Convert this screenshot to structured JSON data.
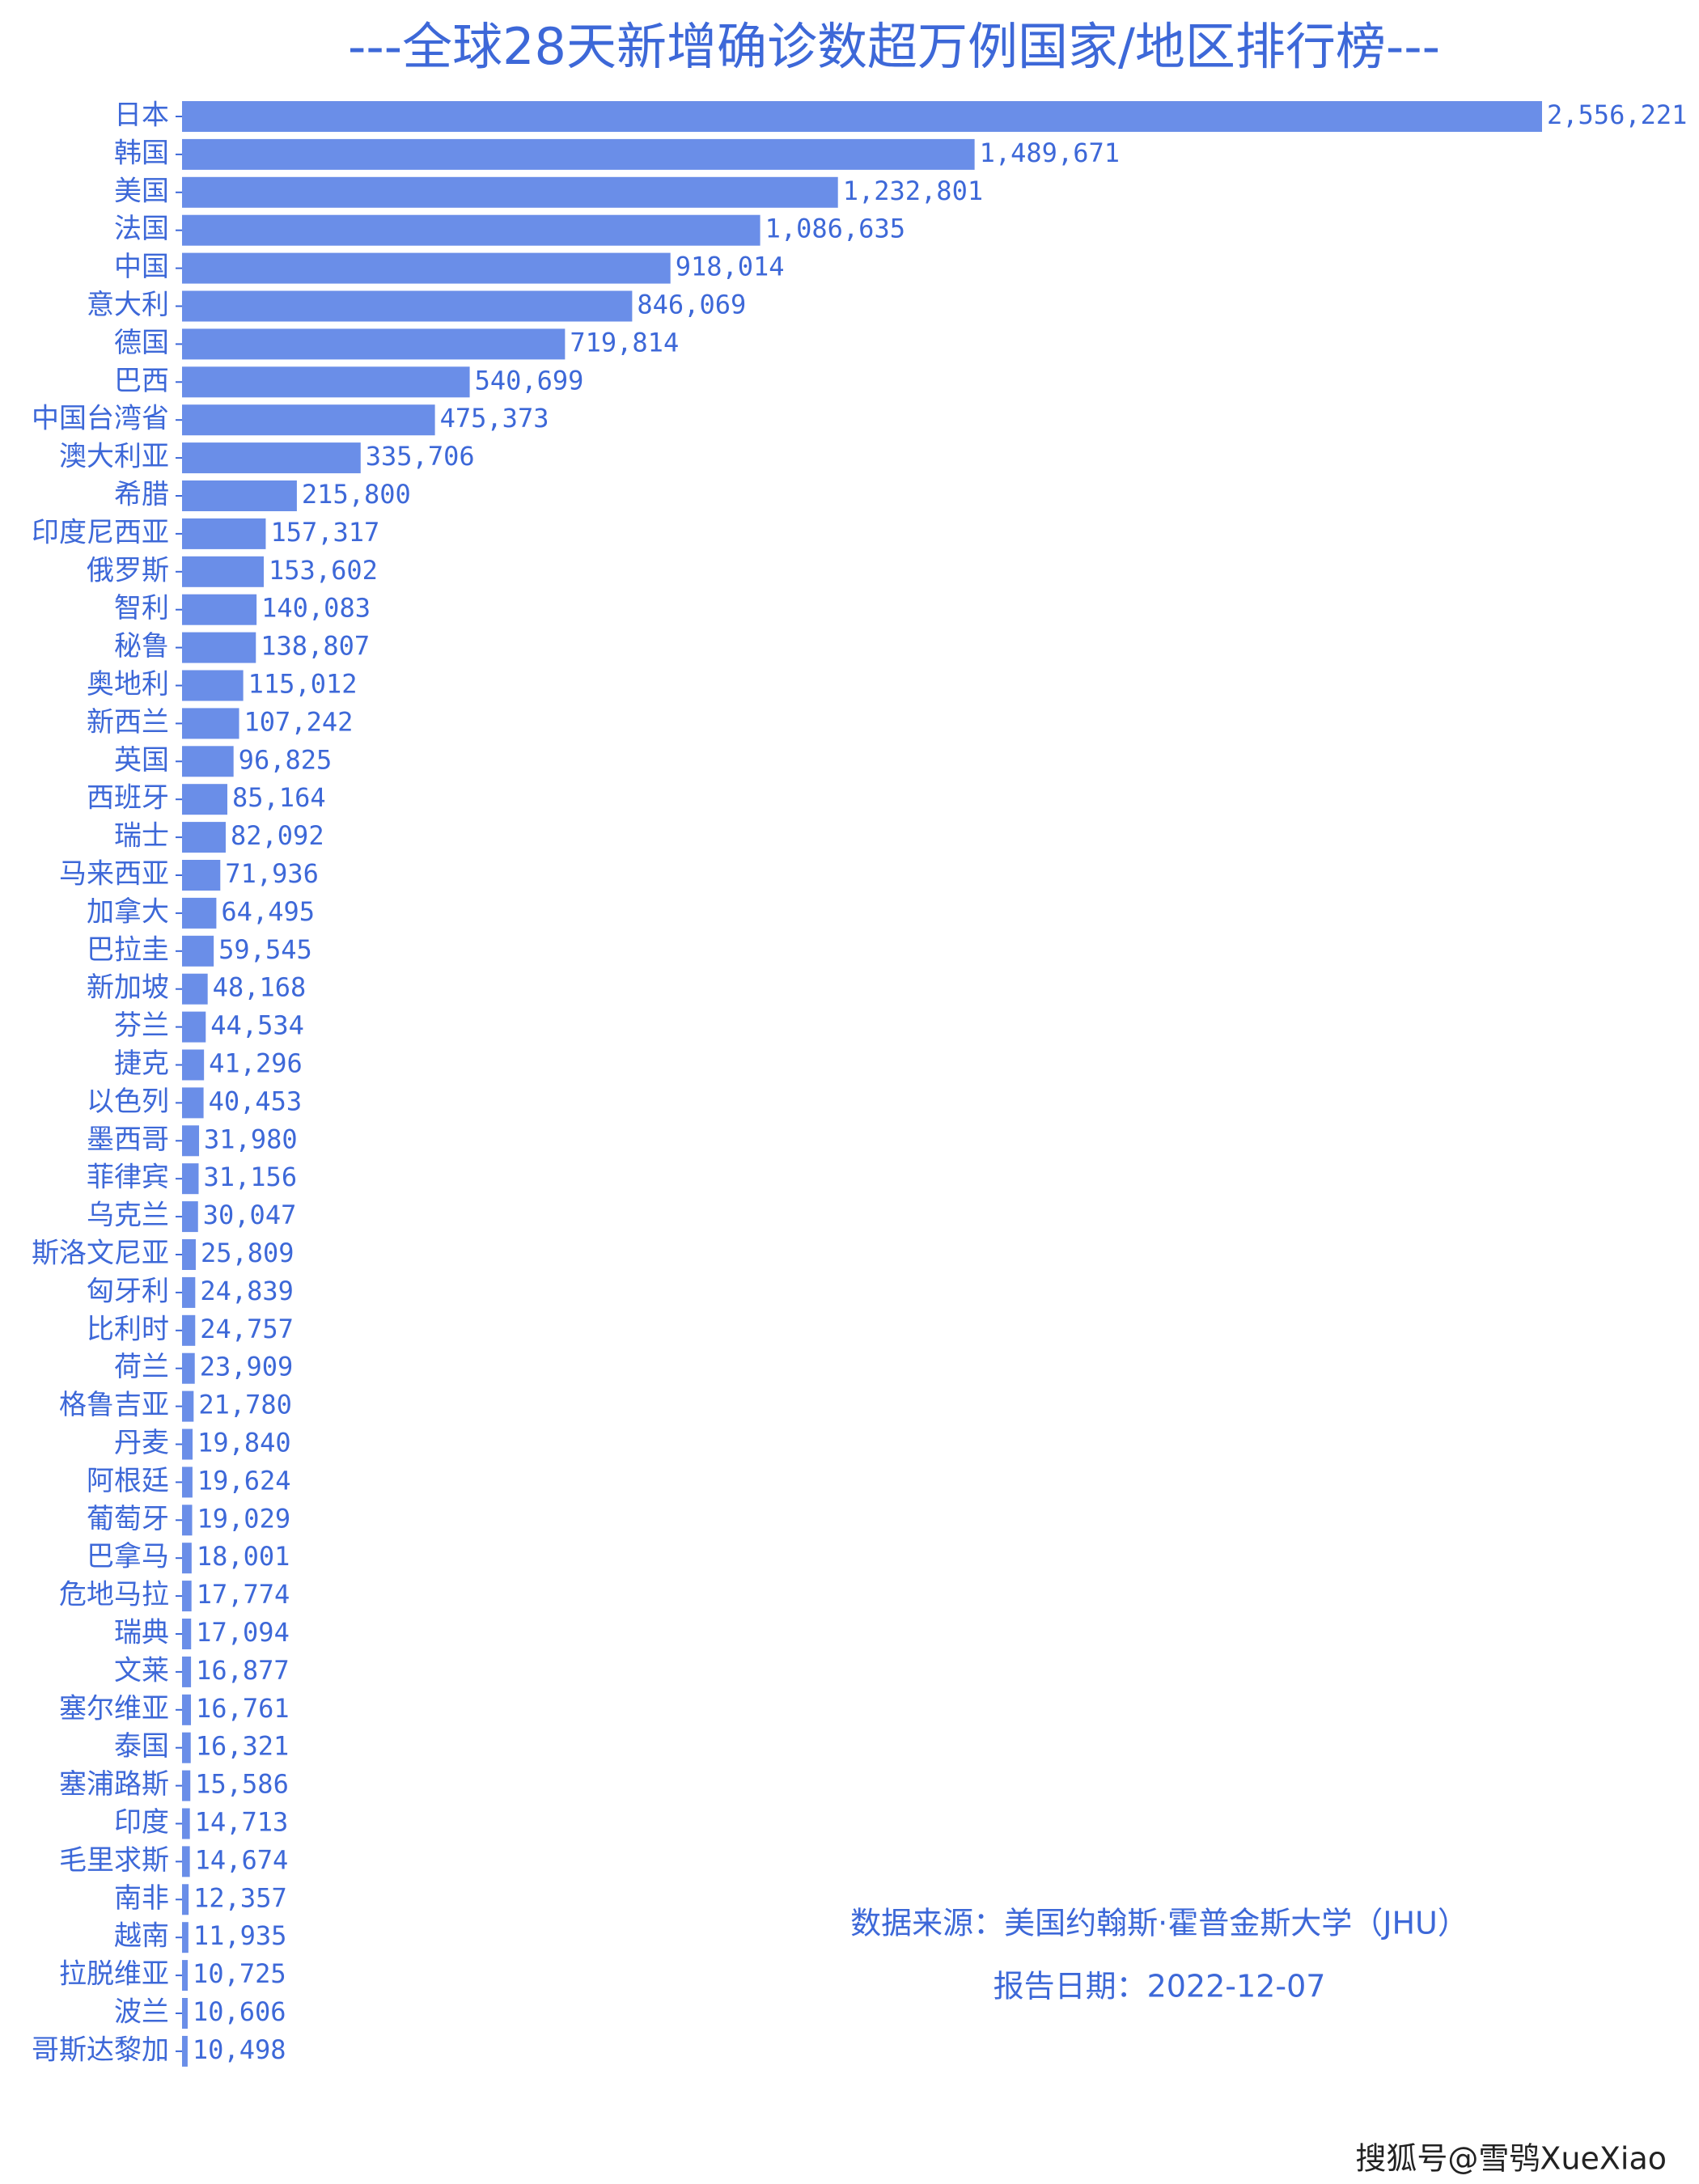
{
  "chart_data": {
    "type": "barh",
    "title": "---全球28天新增确诊数超万例国家/地区排行榜---",
    "color": "#6a8ee8",
    "categories": [
      "日本",
      "韩国",
      "美国",
      "法国",
      "中国",
      "意大利",
      "德国",
      "巴西",
      "中国台湾省",
      "澳大利亚",
      "希腊",
      "印度尼西亚",
      "俄罗斯",
      "智利",
      "秘鲁",
      "奥地利",
      "新西兰",
      "英国",
      "西班牙",
      "瑞士",
      "马来西亚",
      "加拿大",
      "巴拉圭",
      "新加坡",
      "芬兰",
      "捷克",
      "以色列",
      "墨西哥",
      "菲律宾",
      "乌克兰",
      "斯洛文尼亚",
      "匈牙利",
      "比利时",
      "荷兰",
      "格鲁吉亚",
      "丹麦",
      "阿根廷",
      "葡萄牙",
      "巴拿马",
      "危地马拉",
      "瑞典",
      "文莱",
      "塞尔维亚",
      "泰国",
      "塞浦路斯",
      "印度",
      "毛里求斯",
      "南非",
      "越南",
      "拉脱维亚",
      "波兰",
      "哥斯达黎加"
    ],
    "values": [
      2556221,
      1489671,
      1232801,
      1086635,
      918014,
      846069,
      719814,
      540699,
      475373,
      335706,
      215800,
      157317,
      153602,
      140083,
      138807,
      115012,
      107242,
      96825,
      85164,
      82092,
      71936,
      64495,
      59545,
      48168,
      44534,
      41296,
      40453,
      31980,
      31156,
      30047,
      25809,
      24839,
      24757,
      23909,
      21780,
      19840,
      19624,
      19029,
      18001,
      17774,
      17094,
      16877,
      16761,
      16321,
      15586,
      14713,
      14674,
      12357,
      11935,
      10725,
      10606,
      10498
    ],
    "value_labels": [
      "2,556,221",
      "1,489,671",
      "1,232,801",
      "1,086,635",
      "918,014",
      "846,069",
      "719,814",
      "540,699",
      "475,373",
      "335,706",
      "215,800",
      "157,317",
      "153,602",
      "140,083",
      "138,807",
      "115,012",
      "107,242",
      "96,825",
      "85,164",
      "82,092",
      "71,936",
      "64,495",
      "59,545",
      "48,168",
      "44,534",
      "41,296",
      "40,453",
      "31,980",
      "31,156",
      "30,047",
      "25,809",
      "24,839",
      "24,757",
      "23,909",
      "21,780",
      "19,840",
      "19,624",
      "19,029",
      "18,001",
      "17,774",
      "17,094",
      "16,877",
      "16,761",
      "16,321",
      "15,586",
      "14,713",
      "14,674",
      "12,357",
      "11,935",
      "10,725",
      "10,606",
      "10,498"
    ],
    "source": "数据来源：美国约翰斯·霍普金斯大学（JHU）",
    "report_date": "报告日期：2022-12-07",
    "watermark": "搜狐号@雪鸮XueXiao"
  }
}
